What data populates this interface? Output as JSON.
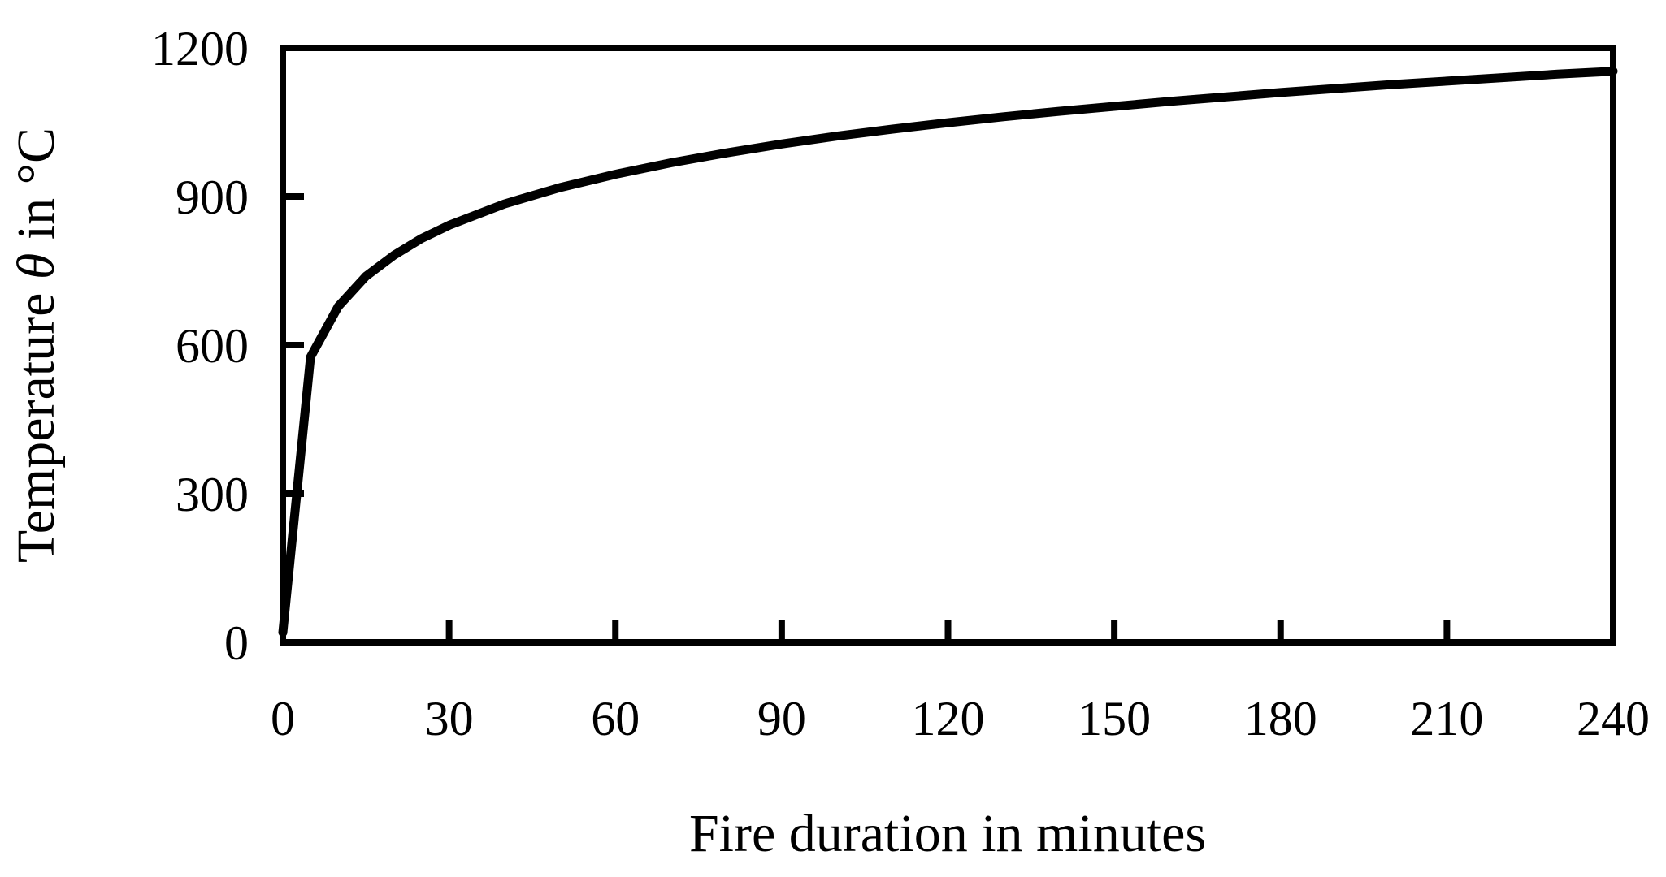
{
  "colors": {
    "line": "#000000",
    "axis": "#000000",
    "background": "#ffffff"
  },
  "chart_data": {
    "type": "line",
    "title": "",
    "xlabel": "Fire duration in minutes",
    "ylabel_prefix": "Temperature ",
    "ylabel_symbol": "θ",
    "ylabel_suffix": " in °C",
    "xlim": [
      0,
      240
    ],
    "ylim": [
      0,
      1200
    ],
    "grid": false,
    "x_ticks": [
      0,
      30,
      60,
      90,
      120,
      150,
      180,
      210,
      240
    ],
    "y_ticks": [
      0,
      300,
      600,
      900,
      1200
    ],
    "series": [
      {
        "x": [
          0,
          5,
          10,
          15,
          20,
          25,
          30,
          40,
          50,
          60,
          70,
          80,
          90,
          100,
          110,
          120,
          130,
          140,
          150,
          160,
          170,
          180,
          190,
          200,
          210,
          220,
          230,
          240
        ],
        "y": [
          20,
          576,
          678,
          739,
          781,
          815,
          842,
          885,
          918,
          945,
          968,
          988,
          1006,
          1022,
          1036,
          1049,
          1061,
          1072,
          1082,
          1092,
          1101,
          1110,
          1118,
          1126,
          1133,
          1140,
          1147,
          1153
        ]
      }
    ]
  }
}
